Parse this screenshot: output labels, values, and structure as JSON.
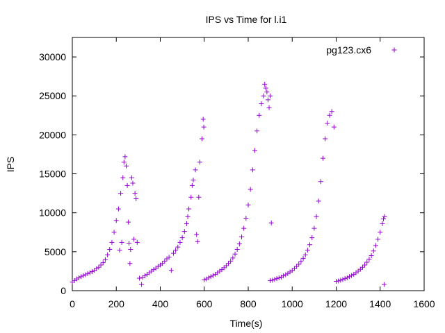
{
  "chart_data": {
    "type": "scatter",
    "title": "IPS vs Time for l.i1",
    "xlabel": "Time(s)",
    "ylabel": "IPS",
    "xlim": [
      0,
      1600
    ],
    "ylim": [
      0,
      32500
    ],
    "xticks": [
      "0",
      "200",
      "400",
      "600",
      "800",
      "1000",
      "1200",
      "1400",
      "1600"
    ],
    "yticks": [
      "0",
      "5000",
      "10000",
      "15000",
      "20000",
      "25000",
      "30000"
    ],
    "legend_position": "top-right",
    "grid": false,
    "marker": "plus",
    "series": [
      {
        "name": "pg123.cx6",
        "color": "#9400d3",
        "points": [
          [
            0,
            1100
          ],
          [
            10,
            1300
          ],
          [
            20,
            1500
          ],
          [
            30,
            1650
          ],
          [
            40,
            1800
          ],
          [
            50,
            1950
          ],
          [
            60,
            2050
          ],
          [
            70,
            2200
          ],
          [
            80,
            2300
          ],
          [
            90,
            2450
          ],
          [
            100,
            2600
          ],
          [
            110,
            2800
          ],
          [
            120,
            3000
          ],
          [
            130,
            3300
          ],
          [
            140,
            3600
          ],
          [
            150,
            4000
          ],
          [
            160,
            4600
          ],
          [
            170,
            5300
          ],
          [
            180,
            6200
          ],
          [
            190,
            7500
          ],
          [
            200,
            9000
          ],
          [
            210,
            10500
          ],
          [
            215,
            5200
          ],
          [
            220,
            12500
          ],
          [
            225,
            6200
          ],
          [
            230,
            14500
          ],
          [
            235,
            16500
          ],
          [
            240,
            17200
          ],
          [
            245,
            16000
          ],
          [
            250,
            13500
          ],
          [
            255,
            8800
          ],
          [
            258,
            6100
          ],
          [
            262,
            3500
          ],
          [
            265,
            5300
          ],
          [
            270,
            14500
          ],
          [
            275,
            13800
          ],
          [
            280,
            6600
          ],
          [
            285,
            12500
          ],
          [
            290,
            11800
          ],
          [
            295,
            6200
          ],
          [
            305,
            1600
          ],
          [
            315,
            800
          ],
          [
            320,
            1700
          ],
          [
            330,
            1900
          ],
          [
            340,
            2100
          ],
          [
            350,
            2300
          ],
          [
            360,
            2500
          ],
          [
            370,
            2700
          ],
          [
            380,
            2900
          ],
          [
            390,
            3100
          ],
          [
            400,
            3300
          ],
          [
            410,
            3500
          ],
          [
            420,
            3800
          ],
          [
            430,
            4100
          ],
          [
            440,
            4300
          ],
          [
            450,
            2600
          ],
          [
            460,
            4800
          ],
          [
            470,
            5200
          ],
          [
            480,
            5600
          ],
          [
            490,
            6200
          ],
          [
            500,
            6800
          ],
          [
            510,
            7600
          ],
          [
            520,
            8600
          ],
          [
            525,
            9500
          ],
          [
            530,
            10500
          ],
          [
            540,
            12000
          ],
          [
            545,
            13500
          ],
          [
            550,
            14200
          ],
          [
            560,
            15500
          ],
          [
            565,
            7200
          ],
          [
            570,
            6300
          ],
          [
            575,
            12000
          ],
          [
            580,
            16500
          ],
          [
            590,
            19500
          ],
          [
            595,
            22000
          ],
          [
            598,
            21000
          ],
          [
            600,
            1400
          ],
          [
            610,
            1500
          ],
          [
            620,
            1650
          ],
          [
            630,
            1800
          ],
          [
            640,
            1950
          ],
          [
            650,
            2100
          ],
          [
            660,
            2300
          ],
          [
            670,
            2500
          ],
          [
            680,
            2700
          ],
          [
            690,
            2950
          ],
          [
            700,
            3200
          ],
          [
            710,
            3500
          ],
          [
            720,
            3800
          ],
          [
            730,
            4200
          ],
          [
            740,
            4700
          ],
          [
            750,
            5300
          ],
          [
            760,
            6000
          ],
          [
            770,
            6900
          ],
          [
            780,
            8000
          ],
          [
            790,
            9300
          ],
          [
            800,
            11000
          ],
          [
            810,
            13000
          ],
          [
            820,
            15500
          ],
          [
            830,
            18000
          ],
          [
            840,
            20500
          ],
          [
            850,
            22500
          ],
          [
            860,
            24000
          ],
          [
            870,
            25000
          ],
          [
            875,
            26500
          ],
          [
            880,
            26000
          ],
          [
            885,
            25500
          ],
          [
            890,
            24500
          ],
          [
            895,
            23500
          ],
          [
            900,
            25000
          ],
          [
            905,
            8700
          ],
          [
            900,
            1300
          ],
          [
            910,
            1350
          ],
          [
            920,
            1450
          ],
          [
            930,
            1550
          ],
          [
            940,
            1650
          ],
          [
            950,
            1750
          ],
          [
            960,
            1900
          ],
          [
            970,
            2050
          ],
          [
            980,
            2200
          ],
          [
            990,
            2400
          ],
          [
            1000,
            2600
          ],
          [
            1010,
            2850
          ],
          [
            1020,
            3100
          ],
          [
            1030,
            3400
          ],
          [
            1040,
            3750
          ],
          [
            1050,
            4150
          ],
          [
            1060,
            4600
          ],
          [
            1070,
            5200
          ],
          [
            1080,
            5900
          ],
          [
            1090,
            6800
          ],
          [
            1100,
            8000
          ],
          [
            1110,
            9500
          ],
          [
            1120,
            11500
          ],
          [
            1130,
            14000
          ],
          [
            1140,
            17000
          ],
          [
            1150,
            19500
          ],
          [
            1160,
            21500
          ],
          [
            1170,
            22500
          ],
          [
            1180,
            23000
          ],
          [
            1190,
            21000
          ],
          [
            1200,
            1200
          ],
          [
            1210,
            1250
          ],
          [
            1220,
            1350
          ],
          [
            1230,
            1450
          ],
          [
            1240,
            1550
          ],
          [
            1250,
            1650
          ],
          [
            1260,
            1800
          ],
          [
            1270,
            1950
          ],
          [
            1280,
            2100
          ],
          [
            1290,
            2300
          ],
          [
            1300,
            2500
          ],
          [
            1310,
            2750
          ],
          [
            1320,
            3000
          ],
          [
            1330,
            3300
          ],
          [
            1340,
            3650
          ],
          [
            1350,
            4050
          ],
          [
            1360,
            4500
          ],
          [
            1370,
            5100
          ],
          [
            1380,
            5800
          ],
          [
            1390,
            6600
          ],
          [
            1400,
            7500
          ],
          [
            1410,
            8600
          ],
          [
            1415,
            9200
          ],
          [
            1420,
            9500
          ],
          [
            1418,
            800
          ]
        ]
      }
    ]
  }
}
